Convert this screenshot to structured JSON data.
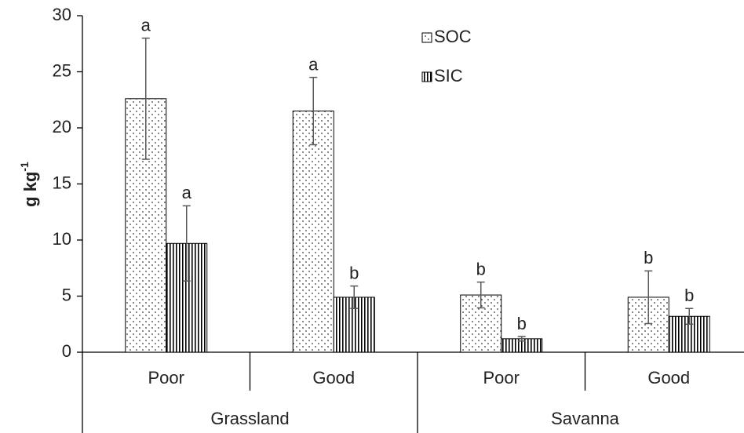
{
  "chart_data": {
    "type": "bar",
    "ylabel": "g kg",
    "ylabel_superscript": "-1",
    "categories": [
      "Poor",
      "Good",
      "Poor",
      "Good"
    ],
    "groups": [
      "Grassland",
      "Savanna"
    ],
    "series": [
      {
        "name": "SOC",
        "color": "#000000",
        "pattern": "dots",
        "values": [
          22.6,
          21.5,
          5.1,
          4.9
        ],
        "errors": [
          5.4,
          3.0,
          1.15,
          2.35
        ],
        "letters": [
          "a",
          "a",
          "b",
          "b"
        ]
      },
      {
        "name": "SIC",
        "color": "#000000",
        "pattern": "vertical-lines",
        "values": [
          9.7,
          4.9,
          1.2,
          3.2
        ],
        "errors": [
          3.35,
          1.0,
          0.2,
          0.7
        ],
        "letters": [
          "a",
          "b",
          "b",
          "b"
        ]
      }
    ],
    "ylim": [
      0,
      30
    ],
    "yticks": [
      0,
      5,
      10,
      15,
      20,
      25,
      30
    ],
    "grid": false,
    "legend": "top-center"
  }
}
